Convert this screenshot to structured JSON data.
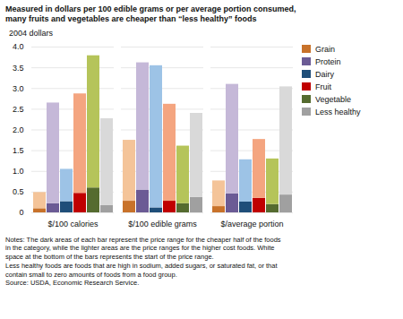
{
  "chart_data": {
    "type": "bar",
    "title": "Measured in dollars per 100 edible grams or per average portion consumed,\nmany fruits and vegetables are cheaper than “less healthy” foods",
    "ylabel": "2004 dollars",
    "categories": [
      "$/100 calories",
      "$/100 edible grams",
      "$/average portion"
    ],
    "series": [
      {
        "name": "Grain",
        "color": "#c8722a",
        "values": [
          0.1,
          0.28,
          0.15
        ],
        "upper_color": "#f4c499",
        "upper_values": [
          0.39,
          1.47,
          0.62
        ]
      },
      {
        "name": "Protein",
        "color": "#6b5b95",
        "values": [
          0.22,
          0.55,
          0.46
        ],
        "upper_color": "#c5b8d8",
        "upper_values": [
          2.43,
          3.07,
          2.64
        ]
      },
      {
        "name": "Dairy",
        "color": "#1f4e79",
        "values": [
          0.27,
          0.12,
          0.26
        ],
        "upper_color": "#9dc3e6",
        "upper_values": [
          0.78,
          3.43,
          1.02
        ]
      },
      {
        "name": "Fruit",
        "color": "#c00000",
        "values": [
          0.47,
          0.28,
          0.35
        ],
        "upper_color": "#f4a580",
        "upper_values": [
          2.4,
          2.34,
          1.42
        ]
      },
      {
        "name": "Vegetable",
        "color": "#556b2f",
        "values": [
          0.6,
          0.22,
          0.2
        ],
        "upper_color": "#b5c45a",
        "upper_values": [
          3.19,
          1.39,
          1.1
        ]
      },
      {
        "name": "Less healthy",
        "color": "#a0a0a0",
        "values": [
          0.18,
          0.37,
          0.43
        ],
        "upper_color": "#d9d9d9",
        "upper_values": [
          2.09,
          2.03,
          2.61
        ]
      }
    ],
    "stacked": true,
    "ylim": [
      0,
      4.0
    ],
    "yticks": [
      0,
      0.5,
      {
        "value": 1.0,
        "label": "1.0"
      },
      1.5,
      {
        "value": 2.0,
        "label": "2.0"
      },
      2.5,
      {
        "value": 3.0,
        "label": "3.0"
      },
      3.5,
      {
        "value": 4.0,
        "label": "4.0"
      }
    ],
    "grid": true,
    "legend": "right",
    "notes": [
      "Notes: The dark areas of each bar represent the price range for the cheaper half of the foods",
      "in the category, while the lighter areas are the price ranges for the higher cost foods. White",
      "space at the bottom of the bars represents the start of the price range.",
      "Less healthy foods are foods that are high in sodium, added sugars, or saturated fat, or that",
      "contain small to zero amounts of foods from a food group.",
      "Source:  USDA, Economic Research Service."
    ]
  }
}
